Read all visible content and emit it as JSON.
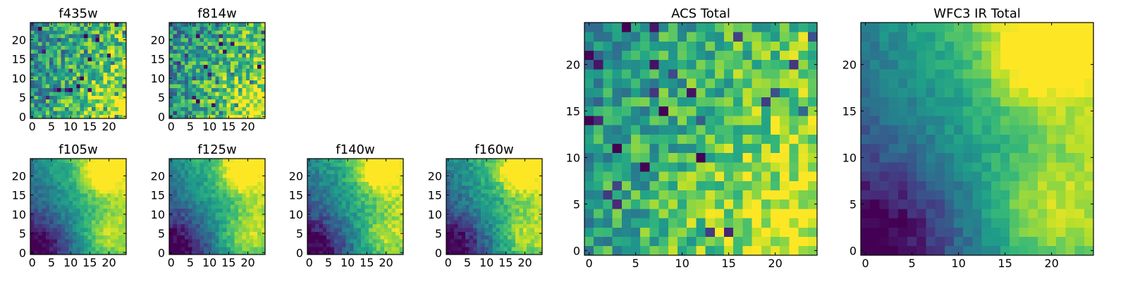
{
  "chart_data": [
    {
      "type": "heatmap",
      "title": "f435w",
      "xticks": [
        0,
        5,
        10,
        15,
        20
      ],
      "yticks": [
        0,
        5,
        10,
        15,
        20
      ],
      "xlim": [
        -0.5,
        24.5
      ],
      "ylim": [
        -0.5,
        24.5
      ],
      "shape": [
        25,
        25
      ],
      "colormap": "viridis",
      "values": []
    },
    {
      "type": "heatmap",
      "title": "f814w",
      "xticks": [
        0,
        5,
        10,
        15,
        20
      ],
      "yticks": [
        0,
        5,
        10,
        15,
        20
      ],
      "xlim": [
        -0.5,
        24.5
      ],
      "ylim": [
        -0.5,
        24.5
      ],
      "shape": [
        25,
        25
      ],
      "colormap": "viridis",
      "values": []
    },
    {
      "type": "heatmap",
      "title": "f105w",
      "xticks": [
        0,
        5,
        10,
        15,
        20
      ],
      "yticks": [
        0,
        5,
        10,
        15,
        20
      ],
      "xlim": [
        -0.5,
        24.5
      ],
      "ylim": [
        -0.5,
        24.5
      ],
      "shape": [
        25,
        25
      ],
      "colormap": "viridis",
      "values": []
    },
    {
      "type": "heatmap",
      "title": "f125w",
      "xticks": [
        0,
        5,
        10,
        15,
        20
      ],
      "yticks": [
        0,
        5,
        10,
        15,
        20
      ],
      "xlim": [
        -0.5,
        24.5
      ],
      "ylim": [
        -0.5,
        24.5
      ],
      "shape": [
        25,
        25
      ],
      "colormap": "viridis",
      "values": []
    },
    {
      "type": "heatmap",
      "title": "f140w",
      "xticks": [
        0,
        5,
        10,
        15,
        20
      ],
      "yticks": [
        0,
        5,
        10,
        15,
        20
      ],
      "xlim": [
        -0.5,
        24.5
      ],
      "ylim": [
        -0.5,
        24.5
      ],
      "shape": [
        25,
        25
      ],
      "colormap": "viridis",
      "values": []
    },
    {
      "type": "heatmap",
      "title": "f160w",
      "xticks": [
        0,
        5,
        10,
        15,
        20
      ],
      "yticks": [
        0,
        5,
        10,
        15,
        20
      ],
      "xlim": [
        -0.5,
        24.5
      ],
      "ylim": [
        -0.5,
        24.5
      ],
      "shape": [
        25,
        25
      ],
      "colormap": "viridis",
      "values": []
    },
    {
      "type": "heatmap",
      "title": "ACS Total",
      "xticks": [
        0,
        5,
        10,
        15,
        20
      ],
      "yticks": [
        0,
        5,
        10,
        15,
        20
      ],
      "xlim": [
        -0.5,
        24.5
      ],
      "ylim": [
        -0.5,
        24.5
      ],
      "shape": [
        25,
        25
      ],
      "colormap": "viridis",
      "values": []
    },
    {
      "type": "heatmap",
      "title": "WFC3 IR Total",
      "xticks": [
        0,
        5,
        10,
        15,
        20
      ],
      "yticks": [
        0,
        5,
        10,
        15,
        20
      ],
      "xlim": [
        -0.5,
        24.5
      ],
      "ylim": [
        -0.5,
        24.5
      ],
      "shape": [
        25,
        25
      ],
      "colormap": "viridis",
      "values": []
    }
  ],
  "colors": {
    "colormap_stops": [
      "#440154",
      "#482878",
      "#3e4989",
      "#31688e",
      "#26828e",
      "#1f9e89",
      "#35b779",
      "#6ece58",
      "#b5de2b",
      "#fde725"
    ],
    "axis": "#000000",
    "background": "#ffffff"
  }
}
